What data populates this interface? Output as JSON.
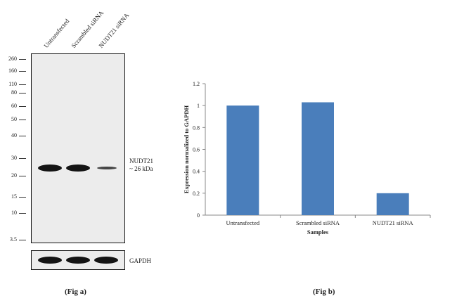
{
  "blot": {
    "lanes": [
      "Untransfected",
      "Scrambled siRNA",
      "NUDT21 siRNA"
    ],
    "markers": [
      "260",
      "160",
      "110",
      "80",
      "60",
      "50",
      "40",
      "30",
      "20",
      "15",
      "10",
      "3.5"
    ],
    "target_label": "NUDT21",
    "target_size": "~ 26 kDa",
    "loading_control": "GAPDH",
    "target_band_intensity": [
      1.0,
      1.0,
      0.3
    ],
    "caption": "(Fig a)"
  },
  "chart_caption": "(Fig b)",
  "chart_data": {
    "type": "bar",
    "categories": [
      "Untransfected",
      "Scrambled siRNA",
      "NUDT21 siRNA"
    ],
    "values": [
      1.0,
      1.03,
      0.2
    ],
    "xlabel": "Samples",
    "ylabel": "Expression normalized to GAPDH",
    "ylim": [
      0,
      1.2
    ],
    "yticks": [
      "0",
      "0.2",
      "0.4",
      "0.6",
      "0.8",
      "1",
      "1.2"
    ],
    "grid": false,
    "bar_color": "#4a7ebb"
  }
}
